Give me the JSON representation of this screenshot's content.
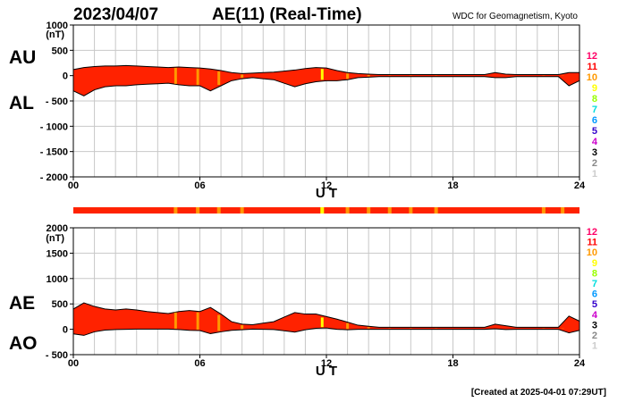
{
  "header": {
    "date": "2023/04/07",
    "title": "AE(11) (Real-Time)",
    "source": "WDC for Geomagnetism, Kyoto"
  },
  "footer": {
    "created": "[Created at 2025-04-01 07:29UT]"
  },
  "station_count_legend": {
    "items": [
      {
        "label": "12",
        "color": "#ff0066"
      },
      {
        "label": "11",
        "color": "#ff0000"
      },
      {
        "label": "10",
        "color": "#ff9900"
      },
      {
        "label": "9",
        "color": "#ffff00"
      },
      {
        "label": "8",
        "color": "#99ff00"
      },
      {
        "label": "7",
        "color": "#00dddd"
      },
      {
        "label": "6",
        "color": "#0099ff"
      },
      {
        "label": "5",
        "color": "#3300cc"
      },
      {
        "label": "4",
        "color": "#cc00cc"
      },
      {
        "label": "3",
        "color": "#000000"
      },
      {
        "label": "2",
        "color": "#888888"
      },
      {
        "label": "1",
        "color": "#cccccc"
      }
    ]
  },
  "station_bar": {
    "base_count": 11,
    "base_color": "#ff2200",
    "markers": [
      {
        "t": 4.85,
        "count": 10
      },
      {
        "t": 5.9,
        "count": 10
      },
      {
        "t": 6.9,
        "count": 10
      },
      {
        "t": 8.0,
        "count": 10
      },
      {
        "t": 11.8,
        "count": 9
      },
      {
        "t": 13.0,
        "count": 10
      },
      {
        "t": 14.0,
        "count": 10
      },
      {
        "t": 15.0,
        "count": 10
      },
      {
        "t": 16.0,
        "count": 10
      },
      {
        "t": 17.2,
        "count": 10
      },
      {
        "t": 22.3,
        "count": 10
      },
      {
        "t": 23.2,
        "count": 10
      }
    ]
  },
  "chart_data": [
    {
      "type": "area",
      "panel": "AU/AL",
      "series_labels": [
        "AU",
        "AL"
      ],
      "ylabel": "(nT)",
      "xlabel": "U T",
      "xlim": [
        0,
        24
      ],
      "ylim": [
        -2000,
        1000
      ],
      "xticks": [
        "00",
        "06",
        "12",
        "18",
        "24"
      ],
      "yticks": [
        "1000",
        "500",
        "0",
        "- 500",
        "- 1000",
        "- 1500",
        "- 2000"
      ],
      "grid": true,
      "fill_color": "#ff2200",
      "x": [
        0,
        0.5,
        1,
        1.5,
        2,
        2.5,
        3,
        3.5,
        4,
        4.5,
        5,
        5.5,
        6,
        6.5,
        7,
        7.5,
        8,
        8.5,
        9,
        9.5,
        10,
        10.5,
        11,
        11.5,
        12,
        12.5,
        13,
        13.5,
        14,
        14.5,
        15,
        15.5,
        16,
        16.5,
        17,
        17.5,
        18,
        18.5,
        19,
        19.5,
        20,
        20.5,
        21,
        21.5,
        22,
        22.5,
        23,
        23.5,
        24
      ],
      "series": [
        {
          "name": "AU",
          "values": [
            120,
            160,
            180,
            190,
            190,
            200,
            190,
            180,
            170,
            160,
            170,
            160,
            150,
            130,
            100,
            60,
            40,
            50,
            60,
            70,
            90,
            110,
            140,
            160,
            150,
            100,
            60,
            40,
            30,
            20,
            20,
            20,
            20,
            20,
            20,
            20,
            20,
            20,
            20,
            20,
            60,
            30,
            20,
            20,
            20,
            20,
            20,
            60,
            60
          ]
        },
        {
          "name": "AL",
          "values": [
            -300,
            -400,
            -280,
            -220,
            -200,
            -200,
            -180,
            -170,
            -160,
            -150,
            -180,
            -200,
            -200,
            -300,
            -200,
            -100,
            -60,
            -40,
            -60,
            -80,
            -150,
            -220,
            -160,
            -120,
            -100,
            -100,
            -80,
            -40,
            -30,
            -20,
            -20,
            -20,
            -20,
            -20,
            -20,
            -20,
            -20,
            -20,
            -20,
            -20,
            -40,
            -40,
            -20,
            -20,
            -20,
            -20,
            -20,
            -200,
            -100
          ]
        }
      ]
    },
    {
      "type": "area",
      "panel": "AE/AO",
      "series_labels": [
        "AE",
        "AO"
      ],
      "ylabel": "(nT)",
      "xlabel": "U T",
      "xlim": [
        0,
        24
      ],
      "ylim": [
        -500,
        2000
      ],
      "xticks": [
        "00",
        "06",
        "12",
        "18",
        "24"
      ],
      "yticks": [
        "2000",
        "1500",
        "1000",
        "500",
        "0",
        "- 500"
      ],
      "grid": true,
      "fill_color": "#ff2200",
      "x": [
        0,
        0.5,
        1,
        1.5,
        2,
        2.5,
        3,
        3.5,
        4,
        4.5,
        5,
        5.5,
        6,
        6.5,
        7,
        7.5,
        8,
        8.5,
        9,
        9.5,
        10,
        10.5,
        11,
        11.5,
        12,
        12.5,
        13,
        13.5,
        14,
        14.5,
        15,
        15.5,
        16,
        16.5,
        17,
        17.5,
        18,
        18.5,
        19,
        19.5,
        20,
        20.5,
        21,
        21.5,
        22,
        22.5,
        23,
        23.5,
        24
      ],
      "series": [
        {
          "name": "AE",
          "values": [
            400,
            520,
            450,
            400,
            380,
            400,
            380,
            350,
            330,
            310,
            350,
            370,
            350,
            430,
            300,
            150,
            100,
            90,
            120,
            150,
            240,
            330,
            300,
            300,
            250,
            200,
            140,
            80,
            60,
            40,
            40,
            40,
            40,
            40,
            40,
            40,
            40,
            40,
            40,
            40,
            100,
            70,
            40,
            40,
            40,
            40,
            40,
            260,
            160
          ]
        },
        {
          "name": "AO",
          "values": [
            -90,
            -120,
            -50,
            -15,
            -5,
            0,
            5,
            5,
            5,
            5,
            -5,
            -20,
            -25,
            -85,
            -50,
            -20,
            -10,
            5,
            0,
            -5,
            -30,
            -55,
            -10,
            20,
            25,
            0,
            -10,
            0,
            0,
            0,
            0,
            0,
            0,
            0,
            0,
            0,
            0,
            0,
            0,
            0,
            10,
            -5,
            0,
            0,
            0,
            0,
            0,
            -70,
            -20
          ]
        }
      ]
    }
  ]
}
